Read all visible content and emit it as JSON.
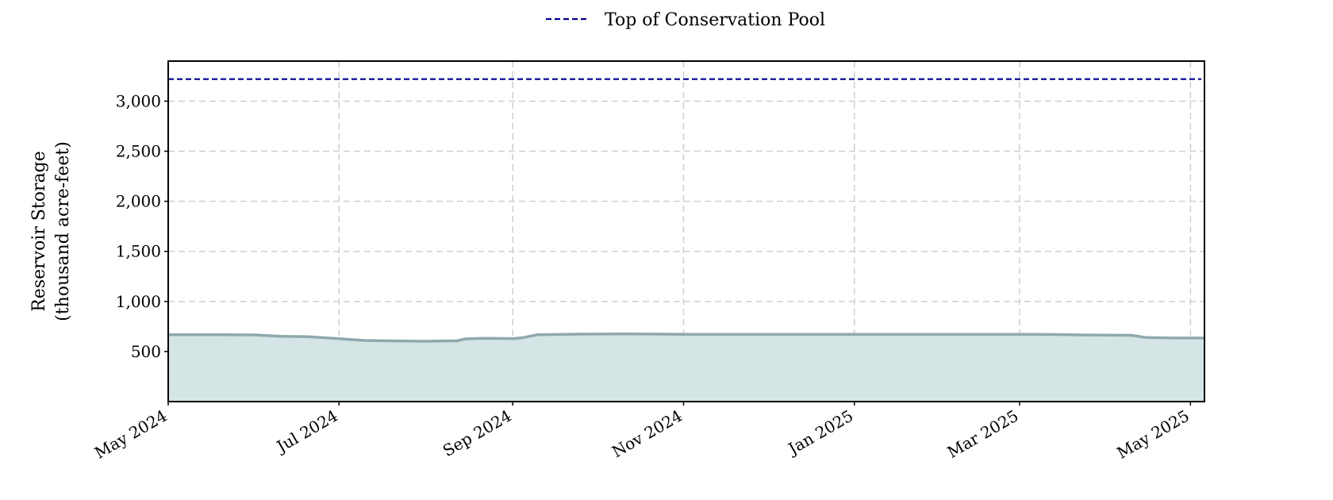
{
  "chart_data": {
    "type": "area",
    "ylabel_lines": [
      "Reservoir Storage",
      "(thousand acre-feet)"
    ],
    "xlabel": "",
    "ylim": [
      0,
      3400
    ],
    "yticks": [
      500,
      1000,
      1500,
      2000,
      2500,
      3000
    ],
    "ytick_labels": [
      "500",
      "1,000",
      "1,500",
      "2,000",
      "2,500",
      "3,000"
    ],
    "xlim": [
      "2024-05-01",
      "2025-05-06"
    ],
    "xticks": [
      "2024-05-01",
      "2024-07-01",
      "2024-09-01",
      "2024-11-01",
      "2025-01-01",
      "2025-03-01",
      "2025-05-01"
    ],
    "xtick_labels": [
      "May 2024",
      "Jul 2024",
      "Sep 2024",
      "Nov 2024",
      "Jan 2025",
      "Mar 2025",
      "May 2025"
    ],
    "grid": true,
    "legend_position": "top-center",
    "legend": [
      "Top of Conservation Pool"
    ],
    "reference_lines": [
      {
        "label": "Top of Conservation Pool",
        "y": 3220,
        "style": "dashed",
        "color": "#00008b"
      }
    ],
    "series": [
      {
        "color": "#8fa9ad",
        "fill": "#d5e5e5",
        "points": [
          [
            "2024-05-01",
            668
          ],
          [
            "2024-05-20",
            668
          ],
          [
            "2024-06-01",
            666
          ],
          [
            "2024-06-10",
            652
          ],
          [
            "2024-06-20",
            648
          ],
          [
            "2024-06-30",
            630
          ],
          [
            "2024-07-10",
            610
          ],
          [
            "2024-07-20",
            606
          ],
          [
            "2024-08-01",
            602
          ],
          [
            "2024-08-08",
            606
          ],
          [
            "2024-08-12",
            606
          ],
          [
            "2024-08-15",
            626
          ],
          [
            "2024-08-22",
            632
          ],
          [
            "2024-08-31",
            630
          ],
          [
            "2024-09-01",
            628
          ],
          [
            "2024-09-05",
            640
          ],
          [
            "2024-09-10",
            668
          ],
          [
            "2024-09-25",
            674
          ],
          [
            "2024-10-10",
            675
          ],
          [
            "2024-10-25",
            674
          ],
          [
            "2024-11-01",
            672
          ],
          [
            "2024-12-01",
            672
          ],
          [
            "2025-01-01",
            672
          ],
          [
            "2025-02-01",
            672
          ],
          [
            "2025-03-01",
            672
          ],
          [
            "2025-03-15",
            670
          ],
          [
            "2025-03-25",
            665
          ],
          [
            "2025-04-10",
            662
          ],
          [
            "2025-04-15",
            640
          ],
          [
            "2025-04-25",
            635
          ],
          [
            "2025-05-06",
            635
          ]
        ]
      }
    ]
  },
  "colors": {
    "series_line": "#8fa9ad",
    "series_fill": "#d5e5e5",
    "reference": "#00008b",
    "grid": "#cfcfcf"
  }
}
